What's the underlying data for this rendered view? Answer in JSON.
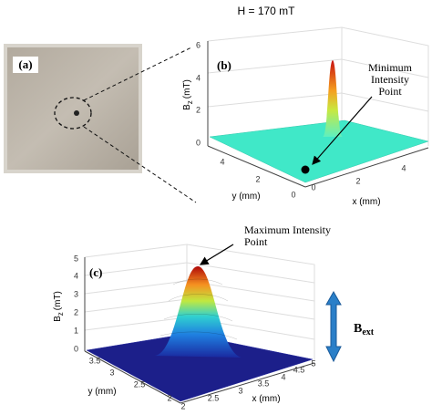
{
  "panel_a": {
    "label": "(a)"
  },
  "panel_b": {
    "title": "H = 170 mT",
    "label": "(b)",
    "z_axis": {
      "symbol": "B",
      "subscript": "z",
      "unit": "(mT)",
      "ticks": [
        "0",
        "2",
        "4",
        "6"
      ]
    },
    "y_axis": {
      "label": "y (mm)",
      "ticks": [
        "0",
        "2",
        "4"
      ]
    },
    "x_axis": {
      "label": "x (mm)",
      "ticks": [
        "0",
        "2",
        "4"
      ]
    },
    "annotation": "Minimum Intensity Point"
  },
  "panel_c": {
    "label": "(c)",
    "z_axis": {
      "symbol": "B",
      "subscript": "z",
      "unit": "(mT)",
      "ticks": [
        "0",
        "1",
        "2",
        "3",
        "4",
        "5"
      ]
    },
    "y_axis": {
      "label": "y (mm)",
      "ticks": [
        "2",
        "2.5",
        "3",
        "3.5"
      ]
    },
    "x_axis": {
      "label": "x (mm)",
      "ticks": [
        "2",
        "2.5",
        "3",
        "3.5",
        "4",
        "4.5",
        "5"
      ]
    },
    "annotation": "Maximum Intensity Point"
  },
  "field": {
    "symbol": "B",
    "subscript": "ext"
  }
}
